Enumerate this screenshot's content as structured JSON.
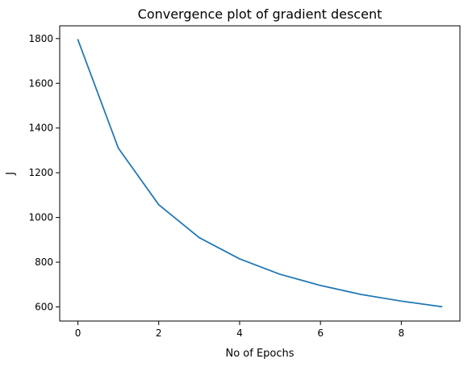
{
  "chart_data": {
    "type": "line",
    "title": "Convergence plot of gradient descent",
    "xlabel": "No of Epochs",
    "ylabel": "J",
    "xlim": [
      -0.45,
      9.45
    ],
    "ylim": [
      537,
      1857
    ],
    "x_ticks": [
      0,
      2,
      4,
      6,
      8
    ],
    "y_ticks": [
      600,
      800,
      1000,
      1200,
      1400,
      1600,
      1800
    ],
    "grid": false,
    "series": [
      {
        "color": "#1f77b4",
        "x": [
          0,
          1,
          2,
          3,
          4,
          5,
          6,
          7,
          8,
          9
        ],
        "y": [
          1795,
          1310,
          1057,
          910,
          815,
          746,
          696,
          656,
          626,
          601
        ]
      }
    ]
  }
}
